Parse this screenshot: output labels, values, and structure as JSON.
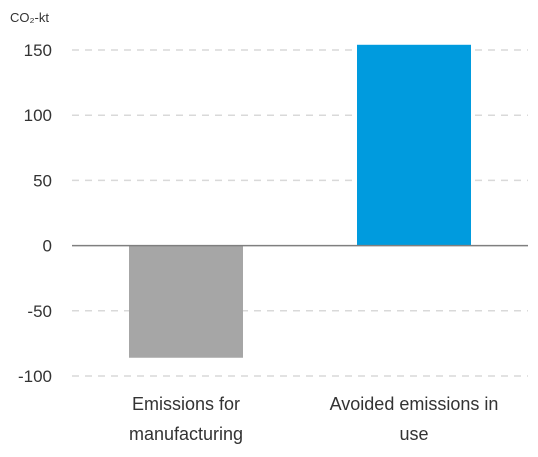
{
  "chart_data": {
    "type": "bar",
    "y_unit_label": "CO₂-kt",
    "categories": [
      [
        "Emissions for",
        "manufacturing"
      ],
      [
        "Avoided emissions in",
        "use"
      ]
    ],
    "values": [
      -86,
      154
    ],
    "bar_colors": [
      "#a6a6a6",
      "#009bde"
    ],
    "ylim": [
      -100,
      150
    ],
    "yticks": [
      "150",
      "100",
      "50",
      "0",
      "-50",
      "-100"
    ],
    "grid": true,
    "grid_style": "dashed",
    "legend": "none"
  }
}
